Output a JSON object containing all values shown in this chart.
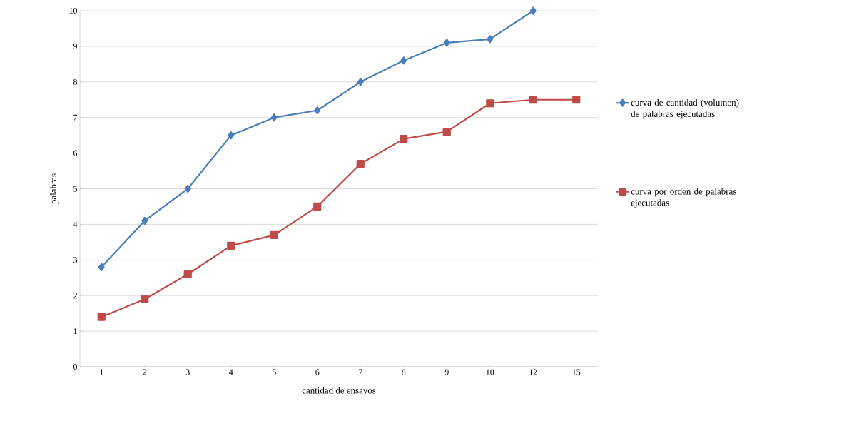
{
  "chart_data": {
    "type": "line",
    "xlabel": "cantidad de ensayos",
    "ylabel": "palabras",
    "categories": [
      "1",
      "2",
      "3",
      "4",
      "5",
      "6",
      "7",
      "8",
      "9",
      "10",
      "12",
      "15"
    ],
    "series": [
      {
        "name": "curva de cantidad (volumen) de palabras ejecutadas",
        "color": "#4a7ebb",
        "marker": "diamond",
        "values": [
          2.8,
          4.1,
          5.0,
          6.5,
          7.0,
          7.2,
          8.0,
          8.6,
          9.1,
          9.2,
          10.0,
          null
        ]
      },
      {
        "name": "curva por orden de palabras ejecutadas",
        "color": "#be4b48",
        "marker": "square",
        "values": [
          1.4,
          1.9,
          2.6,
          3.4,
          3.7,
          4.5,
          5.7,
          6.4,
          6.6,
          7.4,
          7.5,
          7.5
        ]
      }
    ],
    "ylim": [
      0,
      10
    ],
    "yticks": [
      0,
      1,
      2,
      3,
      4,
      5,
      6,
      7,
      8,
      9,
      10
    ],
    "grid": "y",
    "legend": "right",
    "line_style": "solid"
  }
}
